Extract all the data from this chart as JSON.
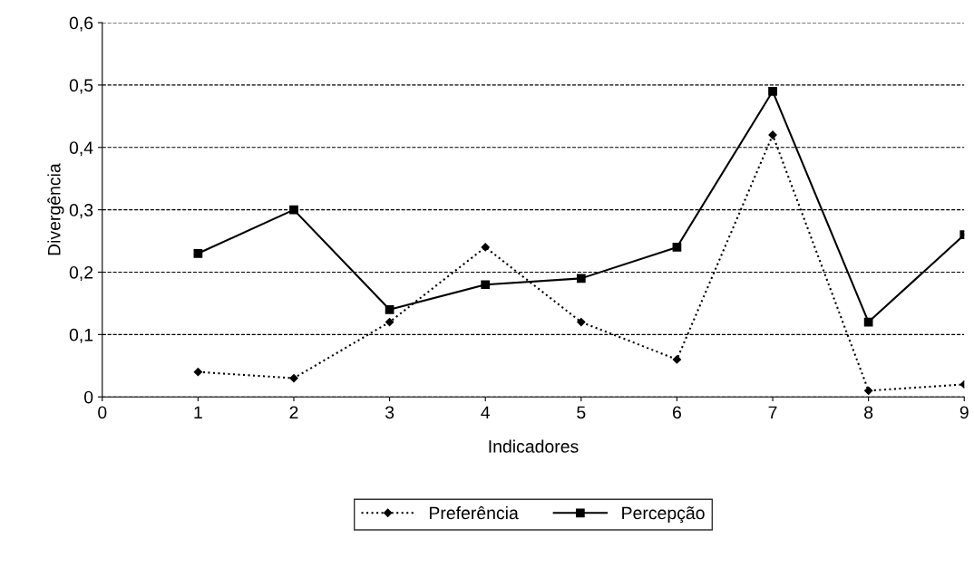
{
  "chart_data": {
    "type": "line",
    "xlabel": "Indicadores",
    "ylabel": "Divergência",
    "x": [
      1,
      2,
      3,
      4,
      5,
      6,
      7,
      8,
      9
    ],
    "series": [
      {
        "name": "Preferência",
        "color": "#000000",
        "marker": "diamond",
        "line_style": "dotted",
        "values": [
          0.04,
          0.03,
          0.12,
          0.24,
          0.12,
          0.06,
          0.42,
          0.01,
          0.02
        ]
      },
      {
        "name": "Percepção",
        "color": "#000000",
        "marker": "square",
        "line_style": "solid",
        "values": [
          0.23,
          0.3,
          0.14,
          0.18,
          0.19,
          0.24,
          0.49,
          0.12,
          0.26
        ]
      }
    ],
    "xlim": [
      0,
      9
    ],
    "xticks": [
      0,
      1,
      2,
      3,
      4,
      5,
      6,
      7,
      8,
      9
    ],
    "ylim": [
      0,
      0.6
    ],
    "yticks": [
      {
        "value": 0,
        "label": "0"
      },
      {
        "value": 0.1,
        "label": "0,1"
      },
      {
        "value": 0.2,
        "label": "0,2"
      },
      {
        "value": 0.3,
        "label": "0,3"
      },
      {
        "value": 0.4,
        "label": "0,4"
      },
      {
        "value": 0.5,
        "label": "0,5"
      },
      {
        "value": 0.6,
        "label": "0,6"
      }
    ],
    "grid": "y",
    "legend": "bottom"
  }
}
